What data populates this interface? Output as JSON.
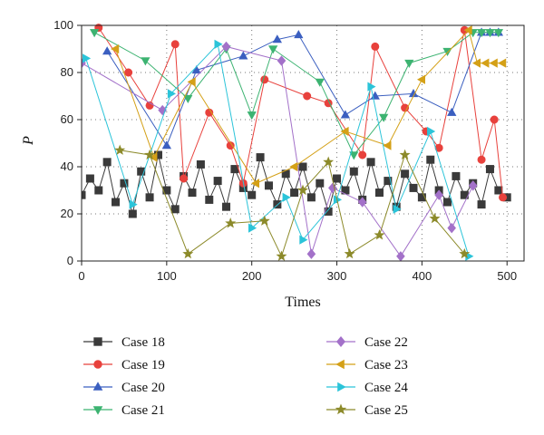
{
  "chart_data": {
    "type": "line",
    "title": "",
    "xlabel": "Times",
    "ylabel": "P",
    "xlim": [
      0,
      520
    ],
    "ylim": [
      0,
      100
    ],
    "x_ticks": [
      0,
      100,
      200,
      300,
      400,
      500
    ],
    "y_ticks": [
      0,
      20,
      40,
      60,
      80,
      100
    ],
    "x_tick_labels": [
      "0",
      "100",
      "200",
      "300",
      "400",
      "500"
    ],
    "y_tick_labels": [
      "0",
      "20",
      "40",
      "60",
      "80",
      "100"
    ],
    "grid": "dotted gridlines at x = 100, 200, 300, 400, 500 and y = 0, 20, 40, 60, 80",
    "legend_position": "bottom, two columns",
    "series": [
      {
        "name": "Case 18",
        "color": "#3a3a3a",
        "marker": "square",
        "x": [
          0,
          10,
          20,
          30,
          40,
          50,
          60,
          70,
          80,
          90,
          100,
          110,
          120,
          130,
          140,
          150,
          160,
          170,
          180,
          190,
          200,
          210,
          220,
          230,
          240,
          250,
          260,
          270,
          280,
          290,
          300,
          310,
          320,
          330,
          340,
          350,
          360,
          370,
          380,
          390,
          400,
          410,
          420,
          430,
          440,
          450,
          460,
          470,
          480,
          490,
          500
        ],
        "y": [
          28,
          35,
          30,
          42,
          25,
          33,
          20,
          38,
          27,
          45,
          30,
          22,
          36,
          29,
          41,
          26,
          34,
          23,
          39,
          31,
          28,
          44,
          32,
          24,
          37,
          29,
          40,
          27,
          33,
          21,
          35,
          30,
          38,
          26,
          42,
          29,
          34,
          23,
          37,
          31,
          27,
          43,
          30,
          25,
          36,
          28,
          33,
          24,
          39,
          30,
          27
        ]
      },
      {
        "name": "Case 19",
        "color": "#e8413c",
        "marker": "circle",
        "x": [
          20,
          55,
          80,
          110,
          120,
          150,
          175,
          190,
          215,
          265,
          290,
          330,
          345,
          380,
          405,
          420,
          450,
          470,
          485,
          495
        ],
        "y": [
          99,
          80,
          66,
          92,
          35,
          63,
          49,
          33,
          77,
          70,
          67,
          45,
          91,
          65,
          55,
          48,
          98,
          43,
          60,
          27
        ]
      },
      {
        "name": "Case 20",
        "color": "#3b5fc0",
        "marker": "triangle-up",
        "x": [
          30,
          100,
          135,
          190,
          230,
          255,
          310,
          345,
          390,
          435,
          470,
          480,
          490
        ],
        "y": [
          89,
          49,
          81,
          87,
          94,
          96,
          62,
          70,
          71,
          63,
          97,
          97,
          97
        ]
      },
      {
        "name": "Case 21",
        "color": "#3cb371",
        "marker": "triangle-down",
        "x": [
          15,
          75,
          125,
          170,
          200,
          225,
          280,
          320,
          355,
          385,
          430,
          460,
          470,
          480,
          490
        ],
        "y": [
          97,
          85,
          69,
          90,
          62,
          90,
          76,
          45,
          61,
          84,
          89,
          97,
          97,
          97,
          97
        ]
      },
      {
        "name": "Case 22",
        "color": "#a371c9",
        "marker": "diamond",
        "x": [
          0,
          95,
          170,
          235,
          270,
          295,
          330,
          375,
          420,
          435,
          460
        ],
        "y": [
          84,
          64,
          91,
          85,
          3,
          31,
          25,
          2,
          28,
          14,
          32
        ]
      },
      {
        "name": "Case 23",
        "color": "#d4a017",
        "marker": "triangle-left",
        "x": [
          40,
          85,
          130,
          205,
          250,
          310,
          360,
          400,
          455,
          465,
          475,
          485,
          495
        ],
        "y": [
          90,
          44,
          76,
          33,
          40,
          55,
          49,
          77,
          98,
          84,
          84,
          84,
          84
        ]
      },
      {
        "name": "Case 24",
        "color": "#2bc4d9",
        "marker": "triangle-right",
        "x": [
          5,
          60,
          105,
          160,
          200,
          240,
          260,
          300,
          340,
          370,
          410,
          455
        ],
        "y": [
          86,
          24,
          71,
          92,
          14,
          27,
          9,
          26,
          74,
          22,
          55,
          2
        ]
      },
      {
        "name": "Case 25",
        "color": "#8c8a2a",
        "marker": "star",
        "x": [
          45,
          80,
          125,
          175,
          215,
          235,
          260,
          290,
          315,
          350,
          380,
          415,
          450
        ],
        "y": [
          47,
          45,
          3,
          16,
          17,
          2,
          30,
          42,
          3,
          11,
          45,
          18,
          3
        ]
      }
    ]
  }
}
